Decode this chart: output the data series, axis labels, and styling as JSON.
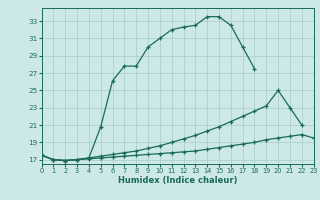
{
  "title": "",
  "xlabel": "Humidex (Indice chaleur)",
  "ylabel": "",
  "bg_color": "#cce8e8",
  "line_color": "#1a6b5a",
  "grid_color": "#aacccc",
  "curve1_x": [
    0,
    1,
    2,
    3,
    4,
    5,
    6,
    7,
    8,
    9,
    10,
    11,
    12,
    13,
    14,
    15,
    16,
    17,
    18
  ],
  "curve1_y": [
    17.5,
    17.0,
    16.9,
    17.0,
    17.2,
    20.8,
    26.1,
    27.8,
    27.8,
    30.0,
    31.0,
    32.0,
    32.3,
    32.5,
    33.5,
    33.5,
    32.5,
    30.0,
    27.5
  ],
  "curve2_x": [
    0,
    1,
    2,
    3,
    4,
    5,
    6,
    7,
    8,
    9,
    10,
    11,
    12,
    13,
    14,
    15,
    16,
    17,
    18,
    19,
    20,
    21,
    22
  ],
  "curve2_y": [
    17.5,
    17.0,
    16.9,
    17.0,
    17.2,
    17.4,
    17.6,
    17.8,
    18.0,
    18.3,
    18.6,
    19.0,
    19.4,
    19.8,
    20.3,
    20.8,
    21.4,
    22.0,
    22.6,
    23.2,
    25.0,
    23.0,
    21.0
  ],
  "curve3_x": [
    0,
    1,
    2,
    3,
    4,
    5,
    6,
    7,
    8,
    9,
    10,
    11,
    12,
    13,
    14,
    15,
    16,
    17,
    18,
    19,
    20,
    21,
    22,
    23
  ],
  "curve3_y": [
    17.5,
    17.0,
    16.9,
    17.0,
    17.1,
    17.2,
    17.3,
    17.4,
    17.5,
    17.6,
    17.7,
    17.8,
    17.9,
    18.0,
    18.2,
    18.4,
    18.6,
    18.8,
    19.0,
    19.3,
    19.5,
    19.7,
    19.9,
    19.5
  ],
  "xlim": [
    0,
    23
  ],
  "ylim": [
    16.5,
    34.5
  ],
  "yticks": [
    17,
    19,
    21,
    23,
    25,
    27,
    29,
    31,
    33
  ],
  "xticks": [
    0,
    1,
    2,
    3,
    4,
    5,
    6,
    7,
    8,
    9,
    10,
    11,
    12,
    13,
    14,
    15,
    16,
    17,
    18,
    19,
    20,
    21,
    22,
    23
  ]
}
